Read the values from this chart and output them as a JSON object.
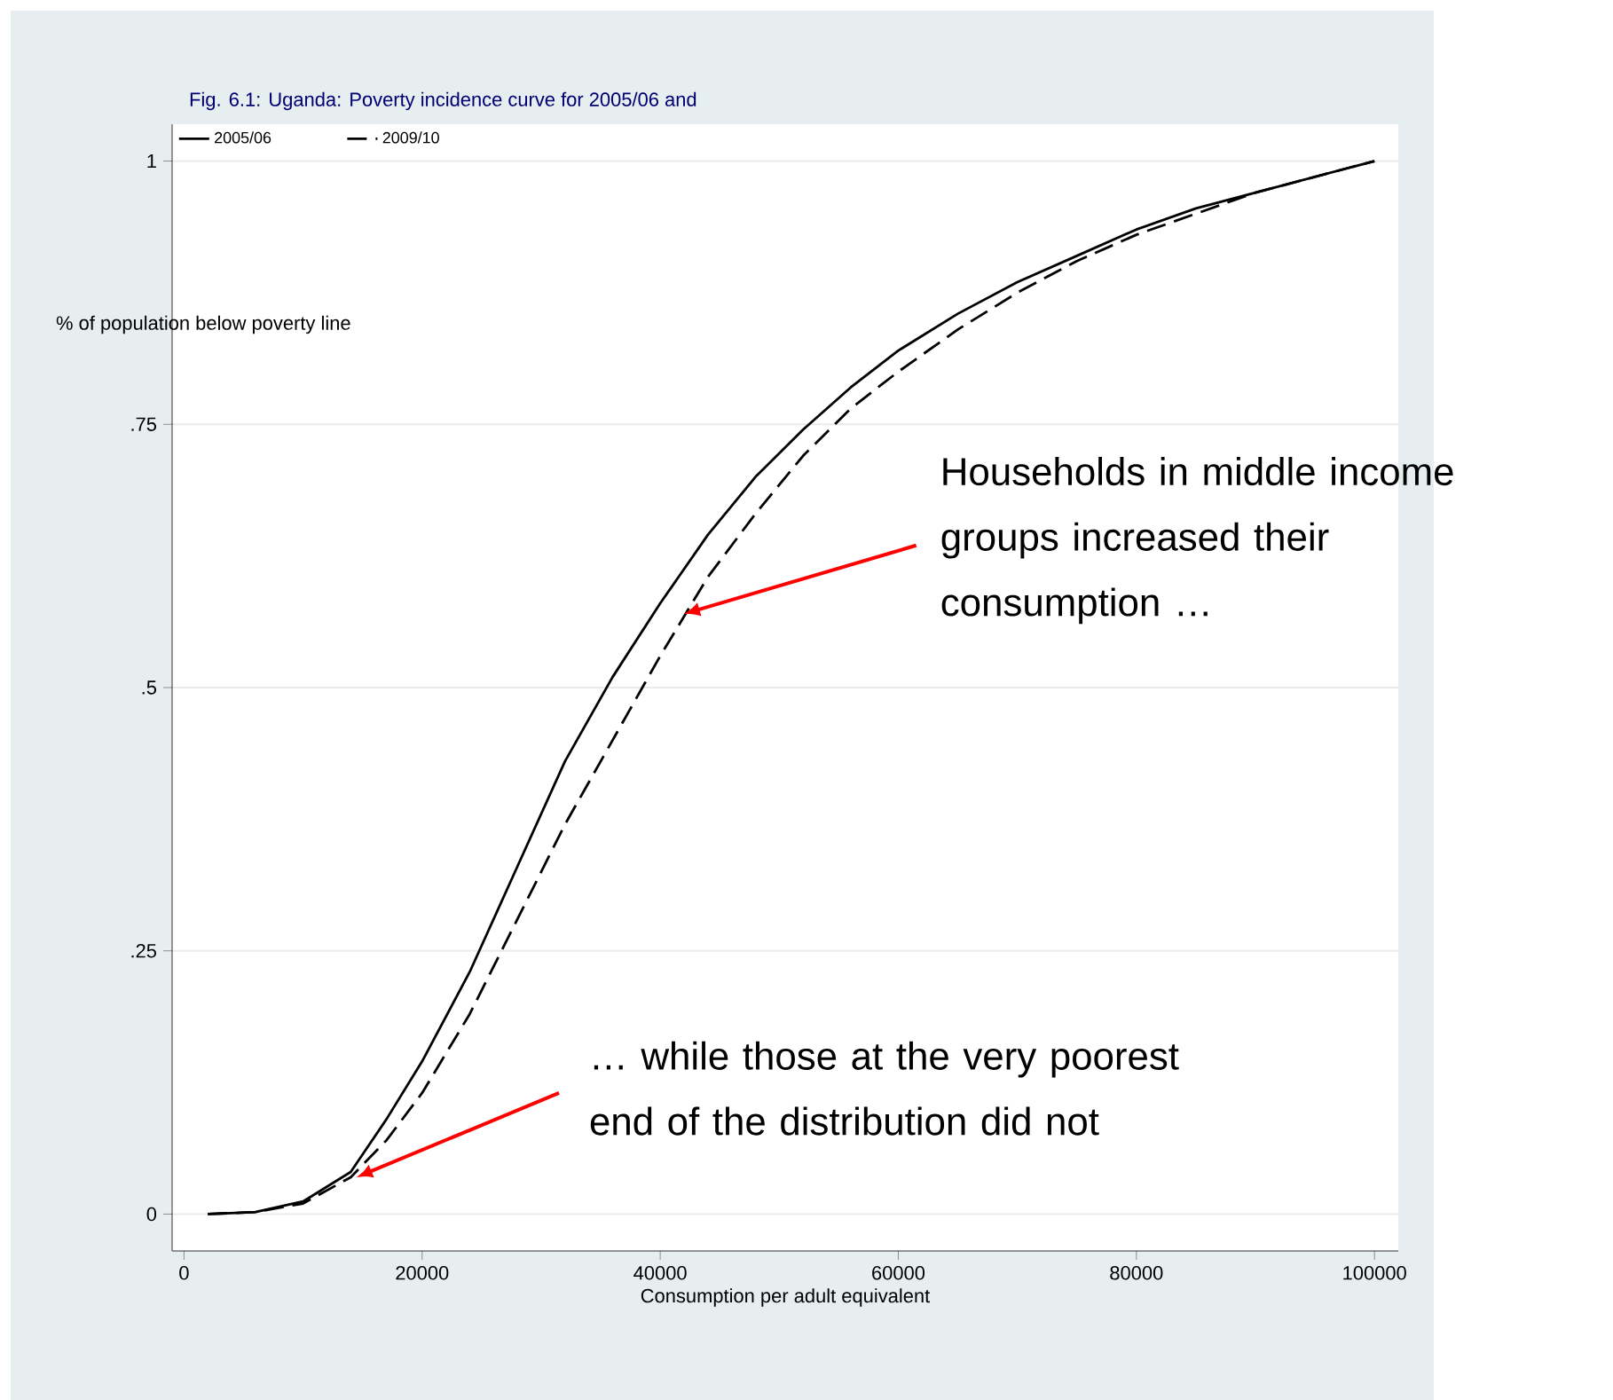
{
  "chart_data": {
    "type": "line",
    "title": "Fig. 6.1: Uganda: Poverty incidence curve for 2005/06 and",
    "xlabel": "Consumption per adult equivalent",
    "ylabel": "% of population below poverty line",
    "x": [
      2000,
      6000,
      10000,
      14000,
      17000,
      20000,
      24000,
      28000,
      32000,
      36000,
      40000,
      44000,
      48000,
      52000,
      56000,
      60000,
      65000,
      70000,
      75000,
      80000,
      85000,
      90000,
      95000,
      100000
    ],
    "series": [
      {
        "name": "2005/06",
        "color": "#000000",
        "line_style": "solid",
        "values": [
          0,
          0.002,
          0.012,
          0.04,
          0.09,
          0.145,
          0.23,
          0.33,
          0.43,
          0.51,
          0.58,
          0.645,
          0.7,
          0.745,
          0.785,
          0.82,
          0.855,
          0.885,
          0.91,
          0.935,
          0.955,
          0.97,
          0.985,
          1.0
        ]
      },
      {
        "name": "2009/10",
        "color": "#000000",
        "line_style": "dashed",
        "values": [
          0,
          0.002,
          0.01,
          0.035,
          0.07,
          0.115,
          0.19,
          0.28,
          0.37,
          0.45,
          0.53,
          0.605,
          0.665,
          0.72,
          0.765,
          0.8,
          0.84,
          0.875,
          0.905,
          0.93,
          0.95,
          0.97,
          0.985,
          1.0
        ]
      }
    ],
    "xlim": [
      -1000,
      102000
    ],
    "ylim": [
      -0.035,
      1.035
    ],
    "xticks": [
      0,
      20000,
      40000,
      60000,
      80000,
      100000
    ],
    "yticks": [
      0,
      {
        "value": 0.25,
        "label": ".25"
      },
      {
        "value": 0.5,
        "label": ".5"
      },
      {
        "value": 0.75,
        "label": ".75"
      },
      1
    ],
    "grid": "y",
    "legend": "top left",
    "annotations": [
      {
        "text": "Households in middle income groups increased their consumption …",
        "x": 42000,
        "y": 0.57
      },
      {
        "text": "… while those at the very poorest end of the distribution did not",
        "x": 14500,
        "y": 0.035
      }
    ]
  }
}
